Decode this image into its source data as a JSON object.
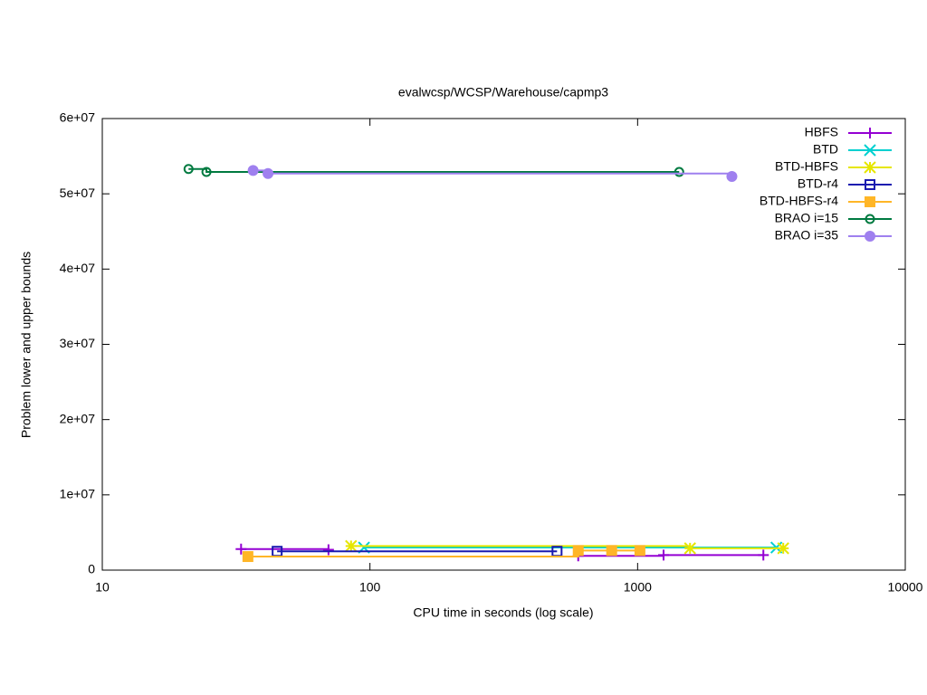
{
  "chart_data": {
    "type": "step-line",
    "title": "evalwcsp/WCSP/Warehouse/capmp3",
    "x_label": "CPU time in seconds (log scale)",
    "y_label": "Problem lower and upper bounds",
    "x_log": true,
    "xlim": [
      10,
      10000
    ],
    "xticks": [
      10,
      100,
      1000,
      10000
    ],
    "ylim": [
      0,
      60000000
    ],
    "yticks": [
      0,
      {
        "value": 10000000,
        "label": "1e+07"
      },
      {
        "value": 20000000,
        "label": "2e+07"
      },
      {
        "value": 30000000,
        "label": "3e+07"
      },
      {
        "value": 40000000,
        "label": "4e+07"
      },
      {
        "value": 50000000,
        "label": "5e+07"
      },
      {
        "value": 60000000,
        "label": "6e+07"
      }
    ],
    "legend": "top-right",
    "series": [
      {
        "name": "HBFS",
        "color": "#9400d3",
        "marker": "plus",
        "x": [
          33,
          70,
          75,
          600,
          1250,
          2950
        ],
        "values": [
          2800000,
          2700000,
          null,
          1900000,
          2000000,
          2000000
        ]
      },
      {
        "name": "BTD",
        "color": "#00d0d0",
        "marker": "cross",
        "x": [
          95,
          3300
        ],
        "values": [
          3000000,
          3000000
        ]
      },
      {
        "name": "BTD-HBFS",
        "color": "#e6e600",
        "marker": "star",
        "x": [
          85,
          1570,
          3500
        ],
        "values": [
          3200000,
          2900000,
          2900000
        ]
      },
      {
        "name": "BTD-r4",
        "color": "#1a1ab0",
        "marker": "square-open",
        "x": [
          45,
          500
        ],
        "values": [
          2500000,
          2500000
        ]
      },
      {
        "name": "BTD-HBFS-r4",
        "color": "#ffb627",
        "marker": "square",
        "x": [
          35,
          600,
          800,
          1020
        ],
        "values": [
          1800000,
          2600000,
          2600000,
          2600000
        ]
      },
      {
        "name": "BRAO i=15",
        "color": "#007a40",
        "marker": "circle-open",
        "x": [
          21,
          24.5,
          1430
        ],
        "values": [
          53300000,
          52900000,
          52900000
        ]
      },
      {
        "name": "BRAO i=35",
        "color": "#9f80ef",
        "marker": "circle",
        "x": [
          36.6,
          41.6,
          2250
        ],
        "values": [
          53100000,
          52700000,
          52300000
        ]
      }
    ]
  }
}
